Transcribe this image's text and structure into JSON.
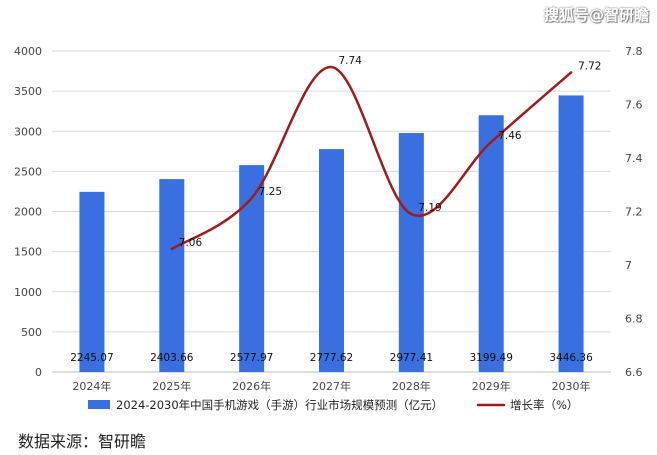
{
  "watermark": "搜狐号@智研瞻",
  "source": "数据来源：智研瞻",
  "colors": {
    "bar": "#3A6FE0",
    "line": "#A01C1C",
    "grid": "#D9D9D9",
    "axis": "#BFBFBF"
  },
  "chart_data": {
    "type": "bar",
    "categories": [
      "2024年",
      "2025年",
      "2026年",
      "2027年",
      "2028年",
      "2029年",
      "2030年"
    ],
    "series": [
      {
        "name": "2024-2030年中国手机游戏（手游）行业市场规模预测（亿元）",
        "type": "bar",
        "axis": "left",
        "values": [
          2245.07,
          2403.66,
          2577.97,
          2777.62,
          2977.41,
          3199.49,
          3446.36
        ],
        "labels": [
          "2245.07",
          "2403.66",
          "2577.97",
          "2777.62",
          "2977.41",
          "3199.49",
          "3446.36"
        ]
      },
      {
        "name": "增长率（%）",
        "type": "line",
        "axis": "right",
        "values": [
          null,
          7.06,
          7.25,
          7.74,
          7.19,
          7.46,
          7.72
        ],
        "labels": [
          null,
          "7.06",
          "7.25",
          "7.74",
          "7.19",
          "7.46",
          "7.72"
        ]
      }
    ],
    "y_left": {
      "min": 0,
      "max": 4000,
      "ticks": [
        "0",
        "500",
        "1000",
        "1500",
        "2000",
        "2500",
        "3000",
        "3500",
        "4000"
      ]
    },
    "y_right": {
      "min": 6.6,
      "max": 7.8,
      "ticks": [
        "6.6",
        "6.8",
        "7",
        "7.2",
        "7.4",
        "7.6",
        "7.8"
      ]
    },
    "grid": "horizontal",
    "legend": "bottom"
  }
}
